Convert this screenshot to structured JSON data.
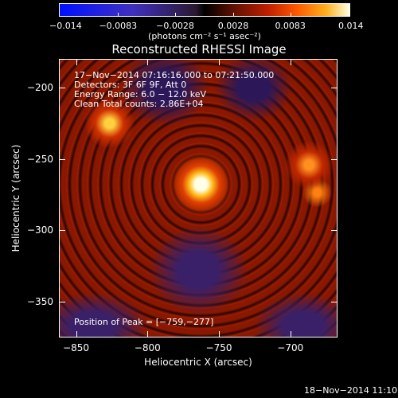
{
  "colorbar": {
    "ticks": [
      "−0.014",
      "−0.0083",
      "−0.0028",
      "0.0028",
      "0.0083",
      "0.014"
    ],
    "tick_values": [
      -0.014,
      -0.0083,
      -0.0028,
      0.0028,
      0.0083,
      0.014
    ],
    "range": [
      -0.014,
      0.014
    ],
    "units": "(photons cm⁻² s⁻¹ asec⁻²)",
    "colors": [
      "#0010ff",
      "#2a1830",
      "#000000",
      "#c02000",
      "#ff5a00",
      "#ffffe0"
    ]
  },
  "chart_data": {
    "type": "heatmap",
    "title": "Reconstructed RHESSI Image",
    "xlabel": "Heliocentric X (arcsec)",
    "ylabel": "Heliocentric Y (arcsec)",
    "xlim": [
      -862,
      -667
    ],
    "ylim": [
      -375,
      -180
    ],
    "xticks": [
      -850,
      -800,
      -750,
      -700
    ],
    "xtick_labels": [
      "−850",
      "−800",
      "−750",
      "−700"
    ],
    "yticks": [
      -200,
      -250,
      -300,
      -350
    ],
    "ytick_labels": [
      "−200",
      "−250",
      "−300",
      "−350"
    ],
    "peak": [
      -759,
      -277
    ],
    "annotations": [
      "17−Nov−2014 07:16:16.000 to 07:21:50.000",
      "Detectors: 3F 6F 9F, Att 0",
      "Energy Range: 6.0 − 12.0 keV",
      "Clean     Total counts: 2.86E+04"
    ],
    "peak_label": "Position of Peak = [−759,−277]"
  },
  "footer": {
    "timestamp": "18−Nov−2014 11:10"
  }
}
